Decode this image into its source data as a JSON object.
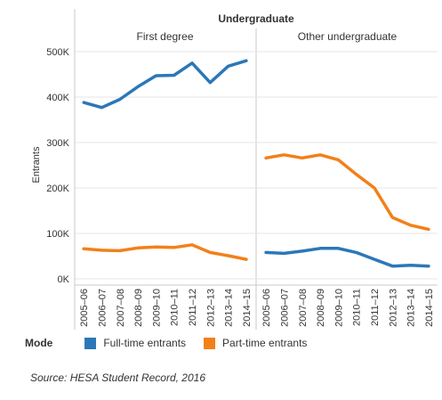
{
  "chart_data": {
    "type": "line",
    "header": "Undergraduate",
    "ylabel": "Entrants",
    "ylim": [
      0,
      500000
    ],
    "yticks": [
      0,
      100000,
      200000,
      300000,
      400000,
      500000
    ],
    "ytick_labels": [
      "0K",
      "100K",
      "200K",
      "300K",
      "400K",
      "500K"
    ],
    "categories": [
      "2005–06",
      "2006–07",
      "2007–08",
      "2008–09",
      "2009–10",
      "2010–11",
      "2011–12",
      "2012–13",
      "2013–14",
      "2014–15"
    ],
    "grid": true,
    "legend_position": "bottom",
    "panels": [
      {
        "title": "First degree",
        "series": [
          {
            "name": "Full-time entrants",
            "values": [
              388000,
              377000,
              395000,
              423000,
              447000,
              448000,
              475000,
              432000,
              468000,
              480000
            ]
          },
          {
            "name": "Part-time entrants",
            "values": [
              66000,
              63000,
              62000,
              68000,
              70000,
              69000,
              75000,
              58000,
              51000,
              43000
            ]
          }
        ]
      },
      {
        "title": "Other undergraduate",
        "series": [
          {
            "name": "Full-time entrants",
            "values": [
              58000,
              56000,
              61000,
              67000,
              67000,
              58000,
              43000,
              28000,
              30000,
              28000
            ]
          },
          {
            "name": "Part-time entrants",
            "values": [
              266000,
              273000,
              266000,
              273000,
              262000,
              230000,
              200000,
              135000,
              118000,
              109000
            ]
          }
        ]
      }
    ]
  },
  "legend": {
    "title": "Mode",
    "items": [
      {
        "label": "Full-time entrants",
        "color": "#2c77b8"
      },
      {
        "label": "Part-time entrants",
        "color": "#f28019"
      }
    ]
  },
  "source": "Source: HESA Student Record, 2016"
}
